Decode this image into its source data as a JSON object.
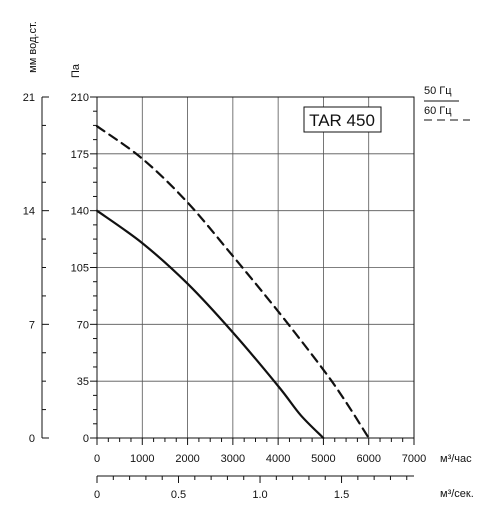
{
  "chart_data": {
    "type": "line",
    "title": "TAR 450",
    "xlabel": "м³/час",
    "xlabel_secondary": "м³/сек.",
    "ylabel": "Па",
    "ylabel_secondary": "мм вод.ст.",
    "xlim": [
      0,
      7000
    ],
    "ylim": [
      0,
      210
    ],
    "x_ticks": [
      "0",
      "1000",
      "2000",
      "3000",
      "4000",
      "5000",
      "6000",
      "7000"
    ],
    "x_ticks_secondary": [
      "0",
      "0.5",
      "1.0",
      "1.5"
    ],
    "y_ticks": [
      "0",
      "35",
      "70",
      "105",
      "140",
      "175",
      "210"
    ],
    "y_ticks_secondary": [
      "0",
      "7",
      "14",
      "21"
    ],
    "grid": true,
    "legend_position": "top-right",
    "series": [
      {
        "name": "50 Гц",
        "style": "solid",
        "x": [
          0,
          1000,
          2000,
          3000,
          4000,
          4500,
          5000
        ],
        "y": [
          140,
          120,
          95,
          65,
          32,
          14,
          0
        ]
      },
      {
        "name": "60 Гц",
        "style": "dashed",
        "x": [
          0,
          1000,
          2000,
          3000,
          4000,
          5000,
          5500,
          6000
        ],
        "y": [
          192,
          172,
          145,
          112,
          78,
          42,
          22,
          0
        ]
      }
    ]
  }
}
